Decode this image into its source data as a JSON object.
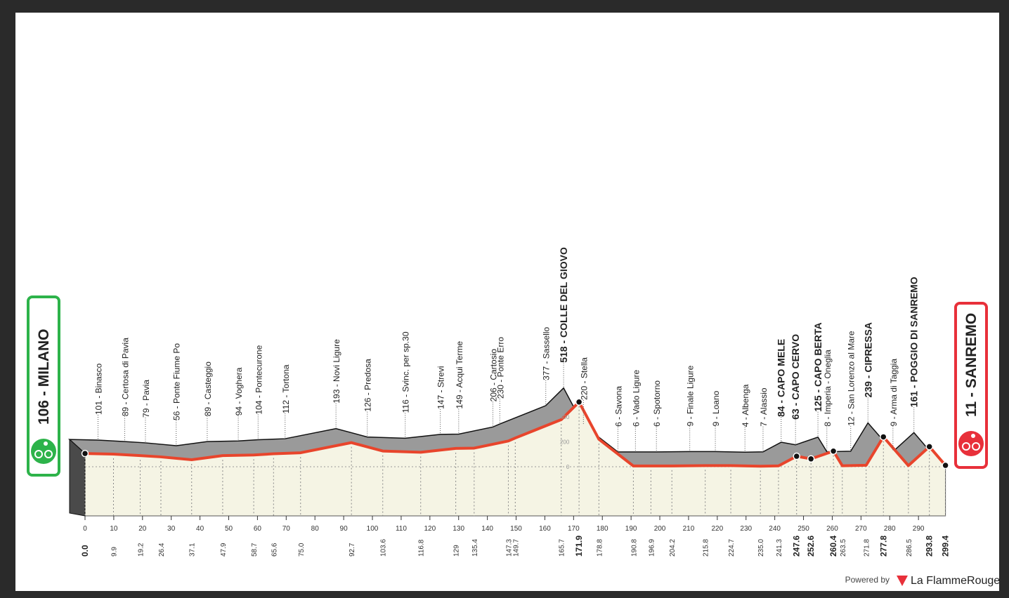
{
  "chart_data": {
    "type": "profile",
    "x": [
      {
        "value": 0,
        "label": "0.0"
      },
      9.9,
      19.2,
      26.4,
      37.1,
      47.9,
      58.7,
      65.6,
      {
        "value": 75,
        "label": "75.0"
      },
      92.7,
      103.6,
      116.8,
      129.0,
      135.4,
      147.3,
      149.7,
      165.7,
      171.9,
      178.8,
      190.8,
      196.9,
      204.2,
      215.8,
      224.7,
      {
        "value": 235,
        "label": "235.0"
      },
      241.3,
      247.6,
      252.6,
      260.4,
      263.5,
      271.8,
      277.8,
      286.5,
      293.8,
      299.4
    ],
    "values": [
      106,
      101,
      89,
      79,
      56,
      89,
      94,
      104,
      112,
      193,
      126,
      116,
      147,
      149,
      206,
      230,
      377,
      518,
      220,
      6,
      6,
      6,
      9,
      9,
      4,
      7,
      84,
      63,
      125,
      8,
      12,
      239,
      9,
      161,
      11
    ],
    "value_labels": [
      "106 - MILANO",
      "101 - Binasco",
      "89 - Certosa di Pavia",
      "79 - Pavia",
      "56 - Ponte Fiume Po",
      "89 - Casteggio",
      "94 - Voghera",
      "104 - Pontecurone",
      "112 - Tortona",
      "193 - Novi Ligure",
      "126 - Predosa",
      "116 - Svinc. per sp.30",
      "147 - Strevi",
      "149 - Acqui Terme",
      "206 - Cartosio",
      "230 - Ponte Erro",
      "377 - Sassello",
      "518 - COLLE DEL GIOVO",
      "220 - Stella",
      "6 - Savona",
      "6 - Vado Ligure",
      "6 - Spotorno",
      "9 - Finale Ligure",
      "9 - Loano",
      "4 - Albenga",
      "7 - Alassio",
      "84 - CAPO MELE",
      "63 - CAPO CERVO",
      "125 - CAPO BERTA",
      "8 - Imperia - Oneglia",
      "12 - San Lorenzo al Mare",
      "239 - CIPRESSA",
      "9 - Arma di Taggia",
      "161 - POGGIO DI SANREMO",
      "11 - SANREMO"
    ],
    "xlim": [
      0,
      299.4
    ],
    "xticks": [
      0,
      10,
      20,
      30,
      40,
      50,
      60,
      70,
      80,
      90,
      100,
      110,
      120,
      130,
      140,
      150,
      160,
      170,
      180,
      190,
      200,
      210,
      220,
      230,
      240,
      250,
      260,
      270,
      280,
      290
    ],
    "ylim": [
      0,
      400
    ],
    "yticks": [
      0,
      200,
      400
    ],
    "line_color": "#e8452c",
    "top_color": "#9a9a9a",
    "front_color": "#f5f4e4",
    "start_color": "#2db34a",
    "finish_color": "#e8303a"
  },
  "footer": {
    "powered_by": "Powered by",
    "brand": "La FlammeRouge"
  }
}
